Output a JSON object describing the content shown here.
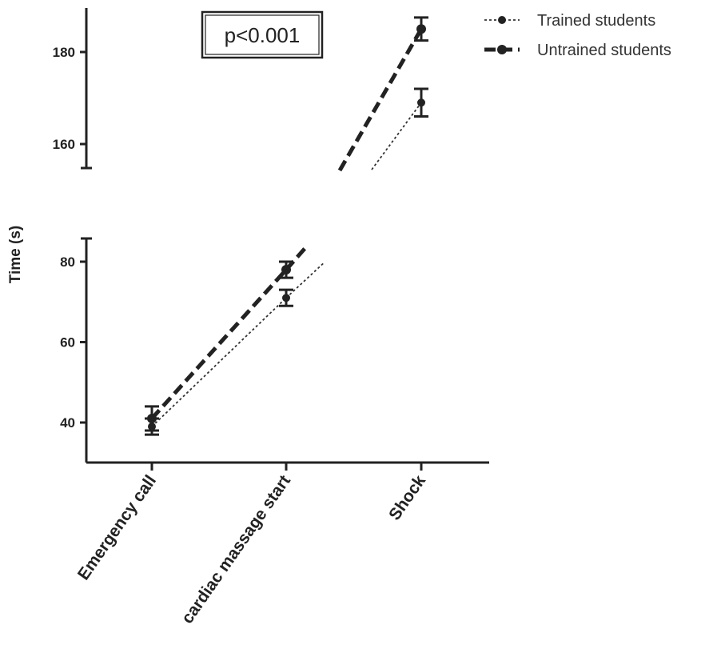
{
  "chart_data": {
    "type": "line",
    "ylabel": "Time (s)",
    "categories": [
      "Emergency call",
      "cardiac massage start",
      "Shock"
    ],
    "y_axis_break": true,
    "y_segments": [
      {
        "ylim": [
          155,
          190
        ],
        "ticks": [
          160,
          180
        ]
      },
      {
        "ylim": [
          35,
          85
        ],
        "ticks": [
          40,
          60,
          80
        ]
      }
    ],
    "series": [
      {
        "name": "Trained students",
        "style": "thin-dotted",
        "color": "#333333",
        "values": [
          39,
          71,
          169
        ],
        "errors": [
          2,
          2,
          3
        ]
      },
      {
        "name": "Untrained students",
        "style": "thick-dashed",
        "color": "#222222",
        "values": [
          41,
          78,
          185
        ],
        "errors": [
          3,
          2,
          2.5
        ]
      }
    ],
    "annotation": "p<0.001",
    "legend_position": "top-right",
    "grid": false
  }
}
